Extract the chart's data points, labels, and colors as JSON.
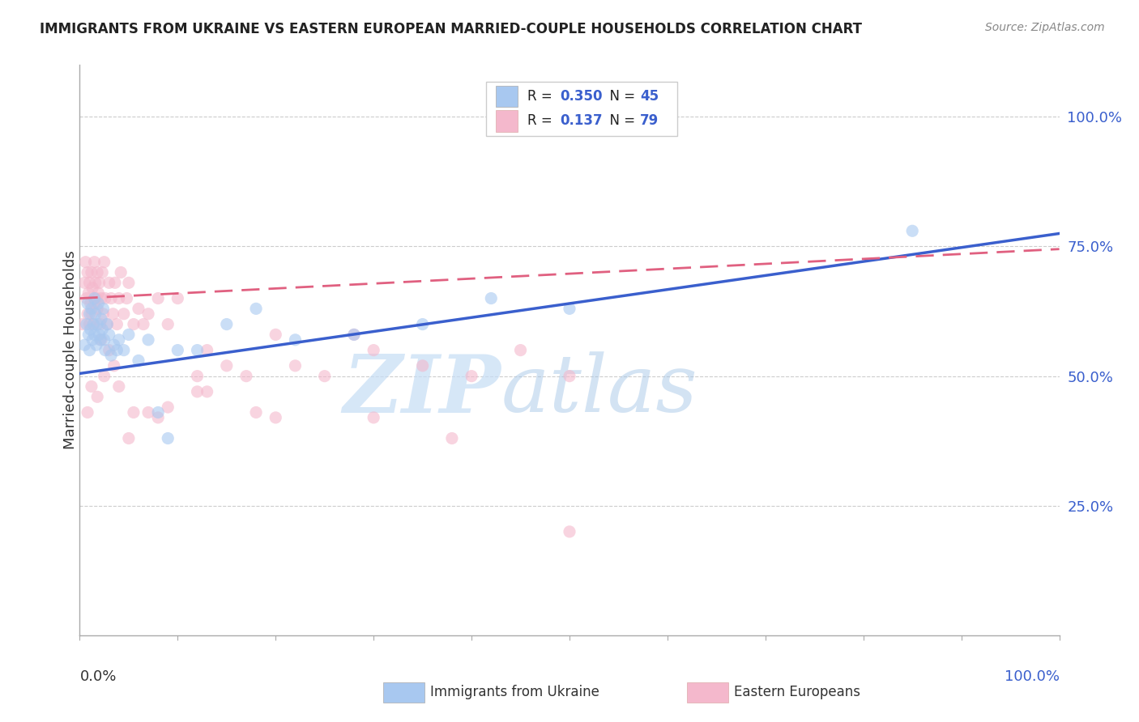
{
  "title": "IMMIGRANTS FROM UKRAINE VS EASTERN EUROPEAN MARRIED-COUPLE HOUSEHOLDS CORRELATION CHART",
  "source": "Source: ZipAtlas.com",
  "ylabel": "Married-couple Households",
  "ytick_labels": [
    "25.0%",
    "50.0%",
    "75.0%",
    "100.0%"
  ],
  "ytick_values": [
    0.25,
    0.5,
    0.75,
    1.0
  ],
  "xlim": [
    0,
    1.0
  ],
  "ylim": [
    0.0,
    1.1
  ],
  "legend_entry1": {
    "label": "Immigrants from Ukraine",
    "R": "0.350",
    "N": "45",
    "color": "#a8c8f0"
  },
  "legend_entry2": {
    "label": "Eastern Europeans",
    "R": "0.137",
    "N": "79",
    "color": "#f4b8cc"
  },
  "ukraine_color": "#a8c8f0",
  "eastern_color": "#f4b8cc",
  "ukraine_line_color": "#3a5fcd",
  "eastern_line_color": "#e06080",
  "background_color": "#ffffff",
  "watermark_zip": "ZIP",
  "watermark_atlas": "atlas",
  "scatter_alpha": 0.6,
  "scatter_size": 120,
  "ukraine_R": 0.35,
  "ukraine_N": 45,
  "eastern_R": 0.137,
  "eastern_N": 79,
  "ukraine_scatter_x": [
    0.005,
    0.007,
    0.008,
    0.009,
    0.01,
    0.01,
    0.011,
    0.012,
    0.013,
    0.014,
    0.015,
    0.015,
    0.016,
    0.017,
    0.018,
    0.019,
    0.02,
    0.021,
    0.022,
    0.023,
    0.024,
    0.025,
    0.026,
    0.028,
    0.03,
    0.032,
    0.035,
    0.038,
    0.04,
    0.045,
    0.05,
    0.06,
    0.07,
    0.08,
    0.09,
    0.1,
    0.12,
    0.15,
    0.18,
    0.22,
    0.28,
    0.35,
    0.42,
    0.5,
    0.85
  ],
  "ukraine_scatter_y": [
    0.56,
    0.6,
    0.64,
    0.58,
    0.62,
    0.55,
    0.59,
    0.63,
    0.57,
    0.6,
    0.58,
    0.65,
    0.62,
    0.56,
    0.6,
    0.64,
    0.58,
    0.57,
    0.61,
    0.59,
    0.63,
    0.57,
    0.55,
    0.6,
    0.58,
    0.54,
    0.56,
    0.55,
    0.57,
    0.55,
    0.58,
    0.53,
    0.57,
    0.43,
    0.38,
    0.55,
    0.55,
    0.6,
    0.63,
    0.57,
    0.58,
    0.6,
    0.65,
    0.63,
    0.78
  ],
  "eastern_scatter_x": [
    0.003,
    0.005,
    0.006,
    0.007,
    0.008,
    0.008,
    0.009,
    0.01,
    0.01,
    0.011,
    0.012,
    0.012,
    0.013,
    0.014,
    0.015,
    0.015,
    0.016,
    0.017,
    0.018,
    0.018,
    0.019,
    0.02,
    0.021,
    0.022,
    0.023,
    0.024,
    0.025,
    0.026,
    0.028,
    0.03,
    0.032,
    0.034,
    0.036,
    0.038,
    0.04,
    0.042,
    0.045,
    0.048,
    0.05,
    0.055,
    0.06,
    0.065,
    0.07,
    0.08,
    0.09,
    0.1,
    0.12,
    0.13,
    0.15,
    0.17,
    0.2,
    0.22,
    0.25,
    0.28,
    0.3,
    0.35,
    0.38,
    0.4,
    0.45,
    0.5,
    0.3,
    0.18,
    0.12,
    0.08,
    0.05,
    0.035,
    0.025,
    0.018,
    0.012,
    0.008,
    0.022,
    0.03,
    0.04,
    0.055,
    0.07,
    0.09,
    0.13,
    0.2,
    0.5
  ],
  "eastern_scatter_y": [
    0.6,
    0.68,
    0.72,
    0.65,
    0.7,
    0.62,
    0.66,
    0.68,
    0.6,
    0.64,
    0.7,
    0.62,
    0.67,
    0.6,
    0.72,
    0.64,
    0.68,
    0.65,
    0.7,
    0.63,
    0.66,
    0.68,
    0.6,
    0.65,
    0.7,
    0.62,
    0.72,
    0.65,
    0.6,
    0.68,
    0.65,
    0.62,
    0.68,
    0.6,
    0.65,
    0.7,
    0.62,
    0.65,
    0.68,
    0.6,
    0.63,
    0.6,
    0.62,
    0.65,
    0.6,
    0.65,
    0.5,
    0.55,
    0.52,
    0.5,
    0.58,
    0.52,
    0.5,
    0.58,
    0.55,
    0.52,
    0.38,
    0.5,
    0.55,
    0.5,
    0.42,
    0.43,
    0.47,
    0.42,
    0.38,
    0.52,
    0.5,
    0.46,
    0.48,
    0.43,
    0.57,
    0.55,
    0.48,
    0.43,
    0.43,
    0.44,
    0.47,
    0.42,
    0.2
  ]
}
